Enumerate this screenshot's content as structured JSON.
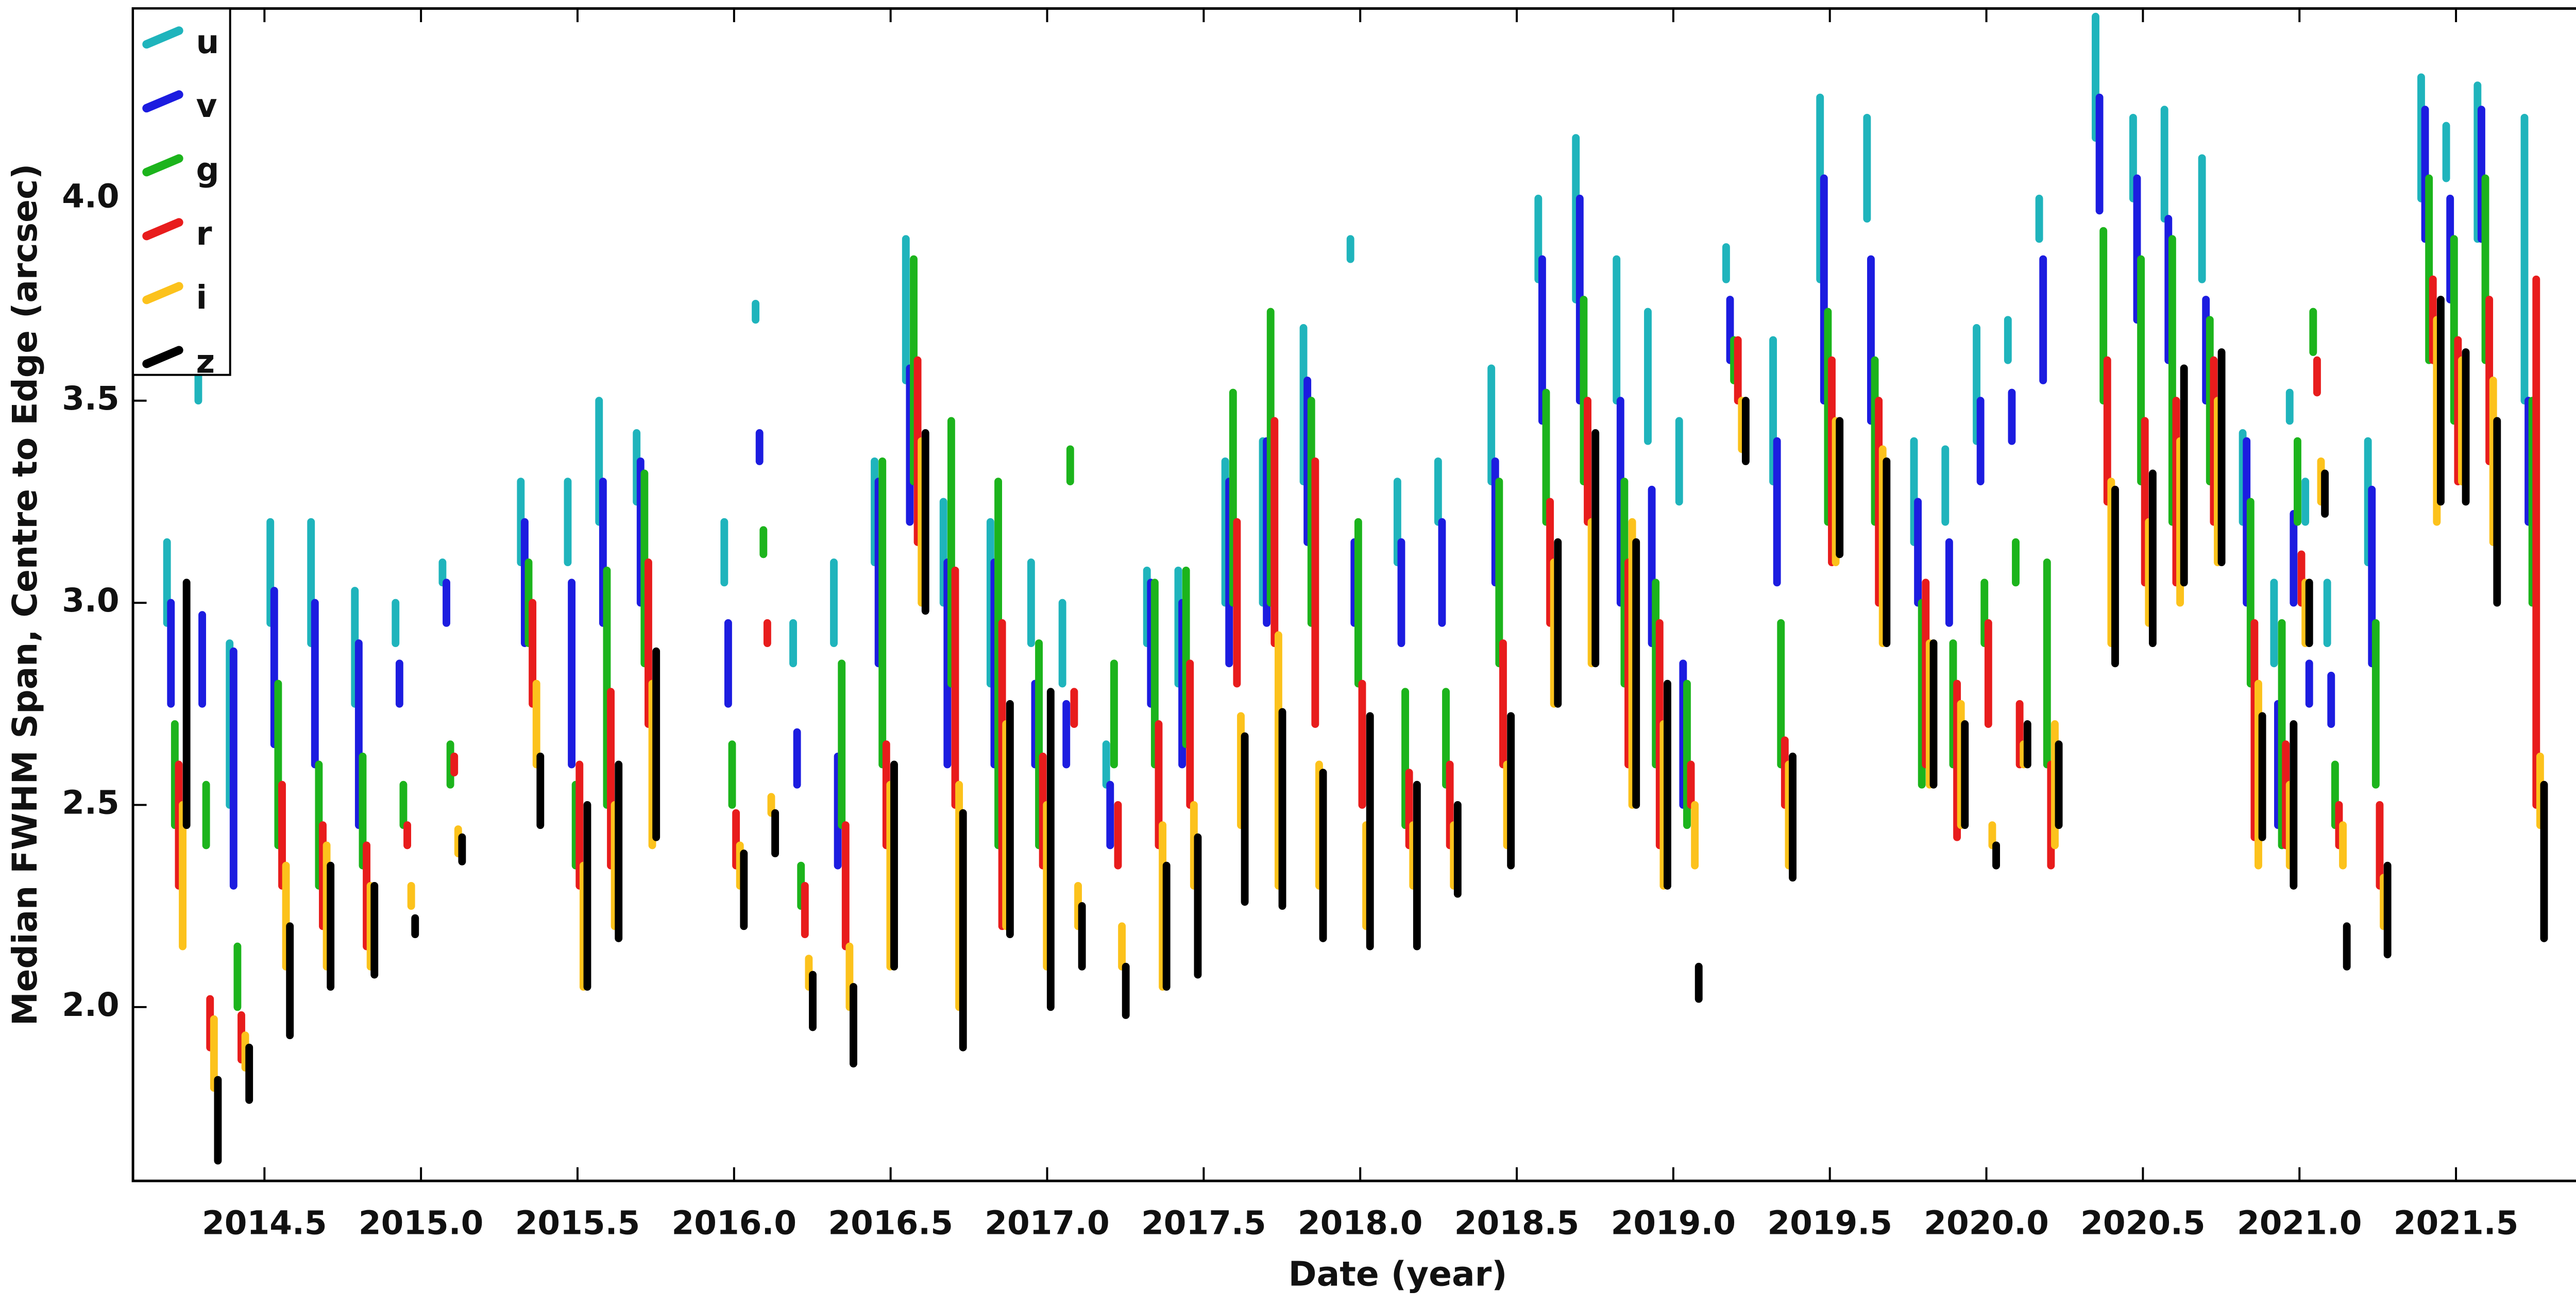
{
  "chart_data": {
    "type": "range",
    "x_label": "Date  (year)",
    "y_label": "Median FWHM Span, Centre to Edge  (arcsec)",
    "xlim": [
      2014.08,
      2022.16
    ],
    "ylim": [
      1.57,
      4.47
    ],
    "xticks": [
      2014.5,
      {
        "value": 2015,
        "label": "2015.0"
      },
      2015.5,
      {
        "value": 2016,
        "label": "2016.0"
      },
      2016.5,
      {
        "value": 2017,
        "label": "2017.0"
      },
      2017.5,
      {
        "value": 2018,
        "label": "2018.0"
      },
      2018.5,
      {
        "value": 2019,
        "label": "2019.0"
      },
      2019.5,
      {
        "value": 2020,
        "label": "2020.0"
      },
      2020.5,
      {
        "value": 2021,
        "label": "2021.0"
      },
      2021.5
    ],
    "yticks": [
      {
        "value": 2,
        "label": "2.0"
      },
      2.5,
      {
        "value": 3,
        "label": "3.0"
      },
      3.5,
      {
        "value": 4,
        "label": "4.0"
      }
    ],
    "legend_position": "upper-left",
    "x": [
      2014.22,
      2014.32,
      2014.42,
      2014.55,
      2014.68,
      2014.82,
      2014.95,
      2015.1,
      2015.35,
      2015.5,
      2015.6,
      2015.72,
      2016.0,
      2016.1,
      2016.22,
      2016.35,
      2016.48,
      2016.58,
      2016.7,
      2016.85,
      2016.98,
      2017.08,
      2017.22,
      2017.35,
      2017.45,
      2017.6,
      2017.72,
      2017.85,
      2018.0,
      2018.15,
      2018.28,
      2018.45,
      2018.6,
      2018.72,
      2018.85,
      2018.95,
      2019.05,
      2019.2,
      2019.35,
      2019.5,
      2019.65,
      2019.8,
      2019.9,
      2020.0,
      2020.1,
      2020.2,
      2020.38,
      2020.5,
      2020.6,
      2020.72,
      2020.85,
      2020.95,
      2021.0,
      2021.05,
      2021.12,
      2021.25,
      2021.42,
      2021.5,
      2021.6,
      2021.75
    ],
    "series": [
      {
        "name": "u",
        "color": "#1fb4bc",
        "low": [
          2.95,
          3.5,
          2.5,
          2.95,
          2.9,
          2.75,
          2.9,
          3.05,
          3.1,
          3.1,
          3.2,
          3.25,
          3.05,
          3.7,
          2.85,
          2.9,
          3.1,
          3.55,
          3.0,
          2.8,
          2.9,
          2.8,
          2.55,
          2.9,
          2.8,
          3.0,
          3.0,
          3.3,
          3.85,
          3.1,
          3.2,
          3.3,
          3.8,
          3.75,
          3.5,
          3.4,
          3.25,
          3.8,
          3.3,
          3.8,
          3.95,
          3.15,
          3.2,
          3.4,
          3.6,
          3.9,
          4.15,
          4.0,
          3.95,
          3.8,
          3.2,
          2.85,
          3.45,
          3.2,
          2.9,
          3.1,
          4.0,
          4.05,
          3.9,
          3.5
        ],
        "high": [
          3.15,
          3.6,
          2.9,
          3.2,
          3.2,
          3.03,
          3.0,
          3.1,
          3.3,
          3.3,
          3.5,
          3.42,
          3.2,
          3.74,
          2.95,
          3.1,
          3.35,
          3.9,
          3.25,
          3.2,
          3.1,
          3.0,
          2.65,
          3.08,
          3.08,
          3.35,
          3.4,
          3.68,
          3.9,
          3.3,
          3.35,
          3.58,
          4.0,
          4.15,
          3.85,
          3.72,
          3.45,
          3.88,
          3.65,
          4.25,
          4.2,
          3.4,
          3.38,
          3.68,
          3.7,
          4.0,
          4.45,
          4.2,
          4.22,
          4.1,
          3.42,
          3.05,
          3.52,
          3.3,
          3.05,
          3.4,
          4.3,
          4.18,
          4.28,
          4.2
        ]
      },
      {
        "name": "v",
        "color": "#1c1ce0",
        "low": [
          2.75,
          2.75,
          2.3,
          2.65,
          2.6,
          2.45,
          2.75,
          2.95,
          2.9,
          2.6,
          2.95,
          3.0,
          2.75,
          3.35,
          2.55,
          2.35,
          2.85,
          3.2,
          2.6,
          2.6,
          2.6,
          2.6,
          2.4,
          2.75,
          2.6,
          2.85,
          2.95,
          3.15,
          2.95,
          2.9,
          2.95,
          3.05,
          3.45,
          3.5,
          3.0,
          2.9,
          2.5,
          3.6,
          3.05,
          3.5,
          3.45,
          3.0,
          2.95,
          3.3,
          3.4,
          3.55,
          3.97,
          3.7,
          3.6,
          3.5,
          3.0,
          2.45,
          3.0,
          2.75,
          2.7,
          2.85,
          3.9,
          3.75,
          3.9,
          3.2
        ],
        "high": [
          3.0,
          2.97,
          2.88,
          3.03,
          3.0,
          2.9,
          2.85,
          3.05,
          3.2,
          3.05,
          3.3,
          3.35,
          2.95,
          3.42,
          2.68,
          2.62,
          3.3,
          3.58,
          3.1,
          3.1,
          2.8,
          2.75,
          2.55,
          3.05,
          3.0,
          3.3,
          3.4,
          3.55,
          3.15,
          3.15,
          3.2,
          3.35,
          3.85,
          4.0,
          3.5,
          3.28,
          2.85,
          3.75,
          3.4,
          4.05,
          3.85,
          3.25,
          3.15,
          3.5,
          3.52,
          3.85,
          4.25,
          4.05,
          3.95,
          3.75,
          3.4,
          2.75,
          3.22,
          2.85,
          2.82,
          3.28,
          4.22,
          4.0,
          4.22,
          3.5
        ]
      },
      {
        "name": "g",
        "color": "#1cb41c",
        "low": [
          2.45,
          2.4,
          2.0,
          2.4,
          2.3,
          2.35,
          2.45,
          2.55,
          2.9,
          2.35,
          2.5,
          2.85,
          2.5,
          3.12,
          2.25,
          2.45,
          2.6,
          3.3,
          2.8,
          2.4,
          2.4,
          3.3,
          2.6,
          2.6,
          2.65,
          3.0,
          3.0,
          2.95,
          2.8,
          2.45,
          2.55,
          2.85,
          3.2,
          3.3,
          2.8,
          2.6,
          2.45,
          3.55,
          2.6,
          3.2,
          3.2,
          2.55,
          2.6,
          2.9,
          3.05,
          2.6,
          3.5,
          3.3,
          3.2,
          3.3,
          2.8,
          2.4,
          3.2,
          3.62,
          2.45,
          2.55,
          3.6,
          3.45,
          3.6,
          3.0
        ],
        "high": [
          2.7,
          2.55,
          2.15,
          2.8,
          2.6,
          2.62,
          2.55,
          2.65,
          3.1,
          2.55,
          3.08,
          3.32,
          2.65,
          3.18,
          2.35,
          2.85,
          3.35,
          3.85,
          3.45,
          3.3,
          2.9,
          3.38,
          2.85,
          3.05,
          3.08,
          3.52,
          3.72,
          3.5,
          3.2,
          2.78,
          2.78,
          3.3,
          3.52,
          3.75,
          3.3,
          3.05,
          2.8,
          3.65,
          2.95,
          3.72,
          3.6,
          3.0,
          2.9,
          3.05,
          3.15,
          3.1,
          3.92,
          3.85,
          3.9,
          3.7,
          3.25,
          2.95,
          3.4,
          3.72,
          2.6,
          2.95,
          4.05,
          3.9,
          4.05,
          3.5
        ]
      },
      {
        "name": "r",
        "color": "#e81c1c",
        "low": [
          2.3,
          1.9,
          1.87,
          2.3,
          2.2,
          2.15,
          2.4,
          2.58,
          2.75,
          2.3,
          2.35,
          2.7,
          2.35,
          2.9,
          2.18,
          2.15,
          2.4,
          3.15,
          2.5,
          2.2,
          2.35,
          2.7,
          2.35,
          2.4,
          2.5,
          2.8,
          2.9,
          2.7,
          2.5,
          2.4,
          2.4,
          2.6,
          2.95,
          3.2,
          2.6,
          2.4,
          2.5,
          3.5,
          2.5,
          3.1,
          3.0,
          2.6,
          2.42,
          2.7,
          2.6,
          2.35,
          3.25,
          3.05,
          3.05,
          3.2,
          2.42,
          2.4,
          3.0,
          3.52,
          2.4,
          2.3,
          3.6,
          3.3,
          3.35,
          2.5
        ],
        "high": [
          2.6,
          2.02,
          1.98,
          2.55,
          2.45,
          2.4,
          2.45,
          2.62,
          3.0,
          2.6,
          2.78,
          3.1,
          2.48,
          2.95,
          2.3,
          2.45,
          2.65,
          3.6,
          3.08,
          2.95,
          2.62,
          2.78,
          2.5,
          2.7,
          2.85,
          3.2,
          3.45,
          3.35,
          2.8,
          2.58,
          2.6,
          2.9,
          3.25,
          3.5,
          3.1,
          2.95,
          2.6,
          3.65,
          2.66,
          3.6,
          3.5,
          3.05,
          2.8,
          2.95,
          2.75,
          2.6,
          3.6,
          3.45,
          3.5,
          3.6,
          2.95,
          2.65,
          3.12,
          3.6,
          2.5,
          2.5,
          3.8,
          3.65,
          3.75,
          3.8
        ]
      },
      {
        "name": "i",
        "color": "#fcc21c",
        "low": [
          2.15,
          1.8,
          1.85,
          2.1,
          2.1,
          2.1,
          2.25,
          2.38,
          2.6,
          2.05,
          2.2,
          2.4,
          2.3,
          2.48,
          2.05,
          2.0,
          2.1,
          3.0,
          2.0,
          2.2,
          2.1,
          2.2,
          2.1,
          2.05,
          2.3,
          2.45,
          2.3,
          2.3,
          2.2,
          2.3,
          2.3,
          2.4,
          2.75,
          2.85,
          2.5,
          2.3,
          2.35,
          3.38,
          2.35,
          3.1,
          2.9,
          2.55,
          2.45,
          2.4,
          2.6,
          2.4,
          2.9,
          2.95,
          3.0,
          3.1,
          2.35,
          2.35,
          2.9,
          3.25,
          2.35,
          2.2,
          3.2,
          3.3,
          3.15,
          2.45
        ],
        "high": [
          2.5,
          1.97,
          1.93,
          2.35,
          2.4,
          2.3,
          2.3,
          2.44,
          2.8,
          2.35,
          2.5,
          2.8,
          2.4,
          2.52,
          2.12,
          2.15,
          2.55,
          3.4,
          2.55,
          2.7,
          2.5,
          2.3,
          2.2,
          2.45,
          2.5,
          2.72,
          2.92,
          2.6,
          2.45,
          2.45,
          2.45,
          2.6,
          3.1,
          3.2,
          3.2,
          2.7,
          2.5,
          3.5,
          2.6,
          3.45,
          3.38,
          2.9,
          2.75,
          2.45,
          2.65,
          2.7,
          3.3,
          3.2,
          3.4,
          3.5,
          2.8,
          2.55,
          3.05,
          3.35,
          2.45,
          2.32,
          3.7,
          3.6,
          3.55,
          2.62
        ]
      },
      {
        "name": "z",
        "color": "#000000",
        "low": [
          2.45,
          1.62,
          1.77,
          1.93,
          2.05,
          2.08,
          2.18,
          2.36,
          2.45,
          2.05,
          2.17,
          2.42,
          2.2,
          2.38,
          1.95,
          1.86,
          2.1,
          2.98,
          1.9,
          2.18,
          2.0,
          2.1,
          1.98,
          2.05,
          2.08,
          2.26,
          2.25,
          2.17,
          2.15,
          2.15,
          2.28,
          2.35,
          2.75,
          2.85,
          2.5,
          2.3,
          2.02,
          3.35,
          2.32,
          3.12,
          2.9,
          2.55,
          2.45,
          2.35,
          2.6,
          2.45,
          2.85,
          2.9,
          3.05,
          3.1,
          2.42,
          2.3,
          2.9,
          3.22,
          2.1,
          2.13,
          3.25,
          3.25,
          3.0,
          2.17
        ],
        "high": [
          3.05,
          1.82,
          1.9,
          2.2,
          2.35,
          2.3,
          2.22,
          2.42,
          2.62,
          2.5,
          2.6,
          2.88,
          2.38,
          2.48,
          2.08,
          2.05,
          2.6,
          3.42,
          2.48,
          2.75,
          2.78,
          2.25,
          2.1,
          2.35,
          2.42,
          2.67,
          2.73,
          2.58,
          2.72,
          2.55,
          2.5,
          2.72,
          3.15,
          3.42,
          3.15,
          2.8,
          2.1,
          3.5,
          2.62,
          3.45,
          3.35,
          2.9,
          2.7,
          2.4,
          2.7,
          2.65,
          3.28,
          3.32,
          3.58,
          3.62,
          2.72,
          2.7,
          3.05,
          3.32,
          2.2,
          2.35,
          3.75,
          3.62,
          3.45,
          2.55
        ]
      }
    ]
  }
}
